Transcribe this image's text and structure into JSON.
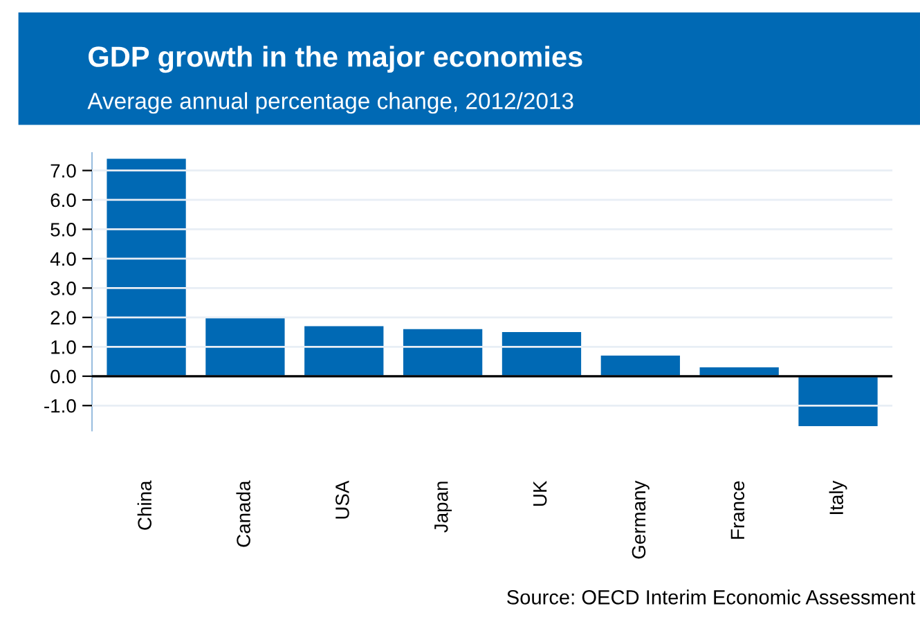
{
  "chart_data": {
    "type": "bar",
    "title": "GDP growth in the major economies",
    "subtitle": "Average annual percentage change, 2012/2013",
    "categories": [
      "China",
      "Canada",
      "USA",
      "Japan",
      "UK",
      "Germany",
      "France",
      "Italy"
    ],
    "values": [
      7.4,
      2.0,
      1.7,
      1.6,
      1.5,
      0.7,
      0.3,
      -1.7
    ],
    "color": "#0069b4",
    "ylim": [
      -1.85,
      7.6
    ],
    "yticks": [
      {
        "value": -1,
        "label": "-1.0"
      },
      {
        "value": 0,
        "label": "0.0"
      },
      {
        "value": 1,
        "label": "1.0"
      },
      {
        "value": 2,
        "label": "2.0"
      },
      {
        "value": 3,
        "label": "3.0"
      },
      {
        "value": 4,
        "label": "4.0"
      },
      {
        "value": 5,
        "label": "5.0"
      },
      {
        "value": 6,
        "label": "6.0"
      },
      {
        "value": 7,
        "label": "7.0"
      }
    ],
    "grid": "y",
    "annotations": [
      "Source: OECD Interim Economic Assessment"
    ]
  }
}
